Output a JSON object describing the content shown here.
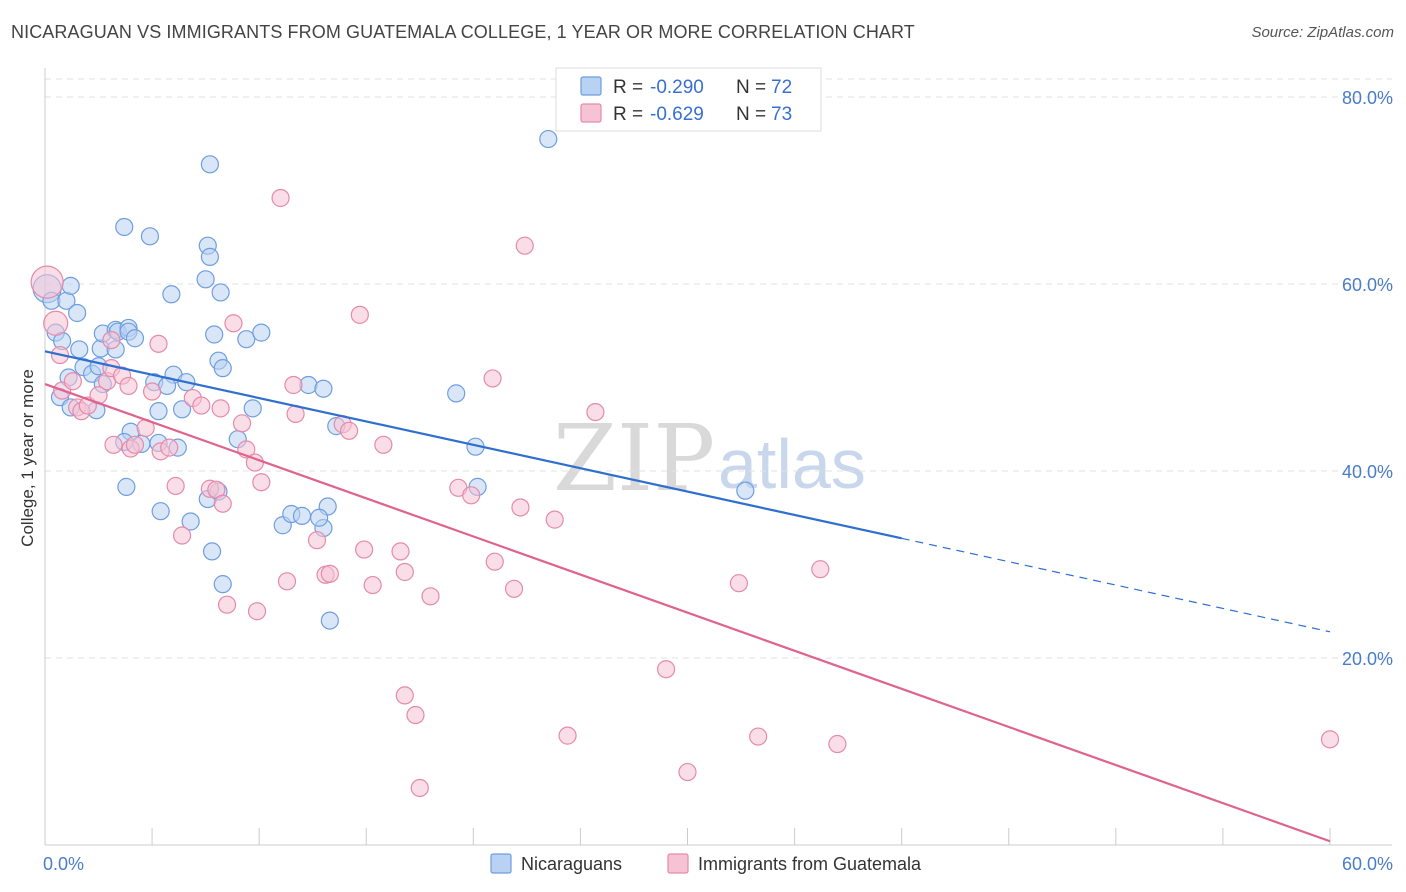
{
  "title": "NICARAGUAN VS IMMIGRANTS FROM GUATEMALA COLLEGE, 1 YEAR OR MORE CORRELATION CHART",
  "source": "Source: ZipAtlas.com",
  "watermark": {
    "zip": "ZIP",
    "atlas": "atlas"
  },
  "colors": {
    "blue": "#6f9ee0",
    "blue_fill": "#b9d1f2",
    "blue_line": "#2f6fcf",
    "pink": "#e68aaa",
    "pink_fill": "#f6c3d4",
    "pink_line": "#e0628f",
    "tick_text": "#4a7cc9",
    "grid": "#e2e2e2"
  },
  "legend": {
    "rows": [
      {
        "r_label": "R =",
        "r_value": "-0.290",
        "n_label": "N =",
        "n_value": "72"
      },
      {
        "r_label": "R =",
        "r_value": "-0.629",
        "n_label": "N =",
        "n_value": "73"
      }
    ]
  },
  "bottom_legend": [
    "Nicaraguans",
    "Immigrants from Guatemala"
  ],
  "chart_data": {
    "type": "scatter",
    "title": "NICARAGUAN VS IMMIGRANTS FROM GUATEMALA COLLEGE, 1 YEAR OR MORE CORRELATION CHART",
    "xlabel": "",
    "ylabel": "College, 1 year or more",
    "xlim": [
      0,
      60
    ],
    "ylim": [
      0,
      82
    ],
    "x_tick_labels": [
      "0.0%",
      "60.0%"
    ],
    "y_tick_labels": [
      "20.0%",
      "40.0%",
      "60.0%",
      "80.0%"
    ],
    "y_ticks": [
      20,
      40,
      60,
      80
    ],
    "grid": true,
    "legend_placement": "top-center",
    "series": [
      {
        "name": "Nicaraguans",
        "R": -0.29,
        "N": 72,
        "trend": {
          "x0": 0,
          "y0": 52.8,
          "x1": 40,
          "y1": 32.8,
          "dashed_to_x": 60,
          "dashed_to_y": 22.8
        },
        "points": [
          [
            0.1,
            59.5
          ],
          [
            0.3,
            58.2
          ],
          [
            1.0,
            58.2
          ],
          [
            0.5,
            54.8
          ],
          [
            0.8,
            53.9
          ],
          [
            1.5,
            56.9
          ],
          [
            1.2,
            59.8
          ],
          [
            2.6,
            53.1
          ],
          [
            2.7,
            54.7
          ],
          [
            1.1,
            50.0
          ],
          [
            1.6,
            53.0
          ],
          [
            0.7,
            47.9
          ],
          [
            1.2,
            46.8
          ],
          [
            1.8,
            51.1
          ],
          [
            2.2,
            50.4
          ],
          [
            2.4,
            46.5
          ],
          [
            2.5,
            51.2
          ],
          [
            3.3,
            55.1
          ],
          [
            3.4,
            54.9
          ],
          [
            3.9,
            55.3
          ],
          [
            3.9,
            54.9
          ],
          [
            2.7,
            49.3
          ],
          [
            3.3,
            53.0
          ],
          [
            4.2,
            54.2
          ],
          [
            5.1,
            49.5
          ],
          [
            6.0,
            50.3
          ],
          [
            5.7,
            49.1
          ],
          [
            5.3,
            46.4
          ],
          [
            4.5,
            42.9
          ],
          [
            4.0,
            44.2
          ],
          [
            3.7,
            43.1
          ],
          [
            6.4,
            46.6
          ],
          [
            6.6,
            49.5
          ],
          [
            7.9,
            54.6
          ],
          [
            8.1,
            51.8
          ],
          [
            8.3,
            51.0
          ],
          [
            8.2,
            59.1
          ],
          [
            9.4,
            54.1
          ],
          [
            10.1,
            54.8
          ],
          [
            9.0,
            43.4
          ],
          [
            9.7,
            46.7
          ],
          [
            7.6,
            37.0
          ],
          [
            8.1,
            37.8
          ],
          [
            7.8,
            31.4
          ],
          [
            6.8,
            34.6
          ],
          [
            5.4,
            35.7
          ],
          [
            3.8,
            38.3
          ],
          [
            7.5,
            60.5
          ],
          [
            7.6,
            64.1
          ],
          [
            7.7,
            62.9
          ],
          [
            5.9,
            58.9
          ],
          [
            3.7,
            66.1
          ],
          [
            4.9,
            65.1
          ],
          [
            7.7,
            72.8
          ],
          [
            8.3,
            27.9
          ],
          [
            11.1,
            34.2
          ],
          [
            11.5,
            35.4
          ],
          [
            12.3,
            49.2
          ],
          [
            12.0,
            35.2
          ],
          [
            13.0,
            33.9
          ],
          [
            13.2,
            36.2
          ],
          [
            12.8,
            35.0
          ],
          [
            13.6,
            44.8
          ],
          [
            13.0,
            48.8
          ],
          [
            13.3,
            24.0
          ],
          [
            5.3,
            43.0
          ],
          [
            19.2,
            48.3
          ],
          [
            20.1,
            42.6
          ],
          [
            20.2,
            38.3
          ],
          [
            23.5,
            75.5
          ],
          [
            32.7,
            37.9
          ],
          [
            6.2,
            42.5
          ]
        ]
      },
      {
        "name": "Immigrants from Guatemala",
        "R": -0.629,
        "N": 73,
        "trend": {
          "x0": 0,
          "y0": 49.3,
          "x1": 60,
          "y1": 0.4
        },
        "points": [
          [
            0.1,
            60.2
          ],
          [
            0.5,
            55.8
          ],
          [
            0.7,
            52.4
          ],
          [
            0.8,
            48.6
          ],
          [
            1.3,
            49.6
          ],
          [
            1.5,
            46.8
          ],
          [
            1.7,
            46.4
          ],
          [
            2.0,
            47.0
          ],
          [
            2.5,
            48.1
          ],
          [
            2.9,
            49.6
          ],
          [
            3.1,
            51.0
          ],
          [
            3.1,
            54.0
          ],
          [
            3.6,
            50.2
          ],
          [
            3.9,
            49.1
          ],
          [
            4.0,
            42.4
          ],
          [
            4.2,
            42.8
          ],
          [
            4.7,
            44.6
          ],
          [
            5.0,
            48.5
          ],
          [
            5.3,
            53.6
          ],
          [
            5.4,
            42.1
          ],
          [
            5.8,
            42.5
          ],
          [
            6.1,
            38.4
          ],
          [
            6.4,
            33.1
          ],
          [
            6.9,
            47.8
          ],
          [
            7.3,
            47.0
          ],
          [
            7.7,
            38.1
          ],
          [
            8.0,
            38.0
          ],
          [
            8.2,
            46.7
          ],
          [
            8.3,
            36.5
          ],
          [
            8.5,
            25.7
          ],
          [
            8.8,
            55.8
          ],
          [
            9.2,
            45.1
          ],
          [
            9.4,
            42.3
          ],
          [
            9.8,
            40.9
          ],
          [
            9.9,
            25.0
          ],
          [
            10.1,
            38.8
          ],
          [
            11.0,
            69.2
          ],
          [
            11.3,
            28.2
          ],
          [
            11.6,
            49.2
          ],
          [
            11.7,
            46.1
          ],
          [
            12.7,
            32.6
          ],
          [
            13.1,
            28.9
          ],
          [
            13.3,
            29.0
          ],
          [
            13.9,
            45.0
          ],
          [
            14.2,
            44.3
          ],
          [
            14.7,
            56.7
          ],
          [
            14.9,
            31.6
          ],
          [
            15.3,
            27.8
          ],
          [
            15.8,
            42.8
          ],
          [
            16.6,
            31.4
          ],
          [
            16.8,
            29.2
          ],
          [
            17.3,
            13.9
          ],
          [
            16.8,
            16.0
          ],
          [
            17.5,
            6.1
          ],
          [
            18.0,
            26.6
          ],
          [
            19.3,
            38.2
          ],
          [
            19.9,
            37.4
          ],
          [
            20.9,
            49.9
          ],
          [
            21.0,
            30.3
          ],
          [
            21.9,
            27.4
          ],
          [
            22.2,
            36.1
          ],
          [
            22.4,
            64.1
          ],
          [
            23.8,
            34.8
          ],
          [
            24.4,
            11.7
          ],
          [
            25.7,
            46.3
          ],
          [
            29.0,
            18.8
          ],
          [
            30.0,
            7.8
          ],
          [
            32.4,
            28.0
          ],
          [
            33.3,
            11.6
          ],
          [
            36.2,
            29.5
          ],
          [
            37.0,
            10.8
          ],
          [
            60.0,
            11.3
          ],
          [
            3.2,
            42.8
          ]
        ]
      }
    ]
  }
}
